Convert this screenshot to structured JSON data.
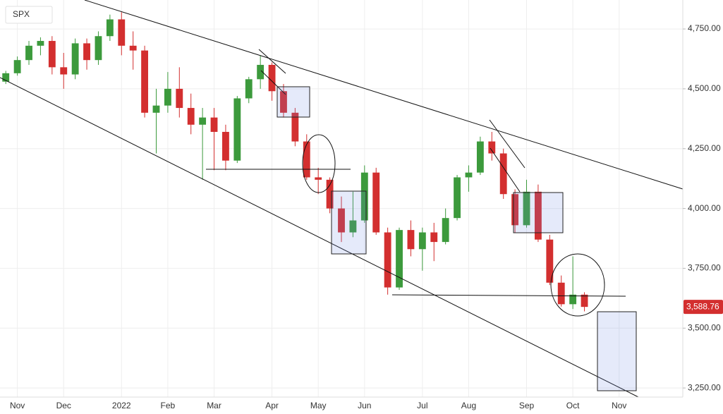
{
  "chart_data": {
    "type": "candlestick",
    "title": "SPX",
    "categories": [
      null,
      "Nov",
      null,
      null,
      null,
      "Dec",
      null,
      null,
      null,
      null,
      "2022",
      null,
      null,
      null,
      "Feb",
      null,
      null,
      null,
      "Mar",
      null,
      null,
      null,
      null,
      "Apr",
      null,
      null,
      null,
      "May",
      null,
      null,
      null,
      "Jun",
      null,
      null,
      null,
      null,
      "Jul",
      null,
      null,
      null,
      "Aug",
      null,
      null,
      null,
      null,
      "Sep",
      null,
      null,
      null,
      "Oct",
      null,
      null,
      null,
      "Nov",
      null,
      null,
      null,
      null,
      null
    ],
    "open": [
      4530,
      4565,
      4620,
      4680,
      4700,
      4590,
      4560,
      4690,
      4620,
      4720,
      4790,
      4680,
      4660,
      4400,
      4430,
      4500,
      4420,
      4350,
      4380,
      4320,
      4200,
      4460,
      4540,
      4600,
      4490,
      4400,
      4280,
      4130,
      4120,
      4000,
      3900,
      3950,
      4150,
      3900,
      3670,
      3910,
      3830,
      3900,
      3860,
      3960,
      4130,
      4150,
      4280,
      4230,
      4060,
      3930,
      4070,
      3870,
      3690,
      3600,
      3640,
      null,
      null,
      null,
      null,
      null,
      null,
      null,
      null
    ],
    "high": [
      4575,
      4635,
      4700,
      4715,
      4720,
      4650,
      4710,
      4710,
      4740,
      4810,
      4820,
      4740,
      4680,
      4500,
      4570,
      4590,
      4480,
      4420,
      4420,
      4350,
      4470,
      4550,
      4640,
      4610,
      4520,
      4420,
      4310,
      4170,
      4130,
      4050,
      4070,
      4180,
      4170,
      3920,
      3920,
      3950,
      3920,
      3940,
      4000,
      4140,
      4180,
      4300,
      4320,
      4250,
      4080,
      4120,
      4100,
      3890,
      3720,
      3800,
      3650,
      null,
      null,
      null,
      null,
      null,
      null,
      null,
      null
    ],
    "low": [
      4520,
      4555,
      4600,
      4640,
      4560,
      4500,
      4540,
      4580,
      4600,
      4700,
      4640,
      4580,
      4380,
      4230,
      4400,
      4380,
      4310,
      4120,
      4160,
      4160,
      4190,
      4440,
      4500,
      4450,
      4380,
      4260,
      4120,
      4060,
      3980,
      3860,
      3880,
      3940,
      3890,
      3640,
      3660,
      3800,
      3740,
      3780,
      3850,
      3950,
      4070,
      4140,
      4200,
      4040,
      3900,
      3920,
      3860,
      3680,
      3590,
      3580,
      3570,
      null,
      null,
      null,
      null,
      null,
      null,
      null,
      null
    ],
    "close": [
      4565,
      4620,
      4680,
      4700,
      4590,
      4560,
      4690,
      4620,
      4720,
      4790,
      4680,
      4660,
      4400,
      4430,
      4500,
      4420,
      4350,
      4380,
      4320,
      4200,
      4460,
      4540,
      4600,
      4490,
      4400,
      4280,
      4130,
      4120,
      4000,
      3900,
      3950,
      4150,
      3900,
      3670,
      3910,
      3830,
      3900,
      3860,
      3960,
      4130,
      4150,
      4280,
      4230,
      4060,
      3930,
      4070,
      3870,
      3690,
      3600,
      3640,
      3588.76,
      null,
      null,
      null,
      null,
      null,
      null,
      null,
      null
    ],
    "up_color": "#3c9a3c",
    "down_color": "#d32f2f",
    "last_price": {
      "value": 3588.76,
      "label": "3,588.76"
    },
    "ylim": [
      3212,
      4871
    ],
    "yticks": [
      {
        "value": 3250,
        "label": "3,250.00"
      },
      {
        "value": 3500,
        "label": "3,500.00"
      },
      {
        "value": 3750,
        "label": "3,750.00"
      },
      {
        "value": 4000,
        "label": "4,000.00"
      },
      {
        "value": 4250,
        "label": "4,250.00"
      },
      {
        "value": 4500,
        "label": "4,500.00"
      },
      {
        "value": 4750,
        "label": "4,750.00"
      }
    ],
    "grid": true
  }
}
